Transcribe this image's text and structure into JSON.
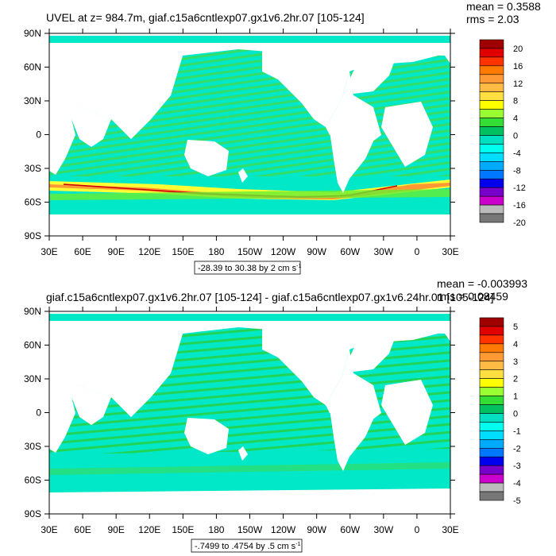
{
  "chart_data": [
    {
      "type": "heatmap",
      "title": "UVEL at z= 984.7m, giaf.c15a6cntlexp07.gx1v6.2hr.07 [105-124]",
      "stats": {
        "mean": "mean = 0.3588",
        "rms": "rms = 2.03"
      },
      "contour_info": "-28.39 to 30.38 by 2 cm s",
      "contour_info_sup": "-1",
      "x_ticks": [
        "30E",
        "60E",
        "90E",
        "120E",
        "150E",
        "180",
        "150W",
        "120W",
        "90W",
        "60W",
        "30W",
        "0",
        "30E"
      ],
      "y_ticks": [
        "90N",
        "60N",
        "30N",
        "0",
        "30S",
        "60S",
        "90S"
      ],
      "ylim": [
        -90,
        90
      ],
      "colorbar_labels": [
        "20",
        "16",
        "12",
        "8",
        "4",
        "0",
        "-4",
        "-8",
        "-12",
        "-16",
        "-20"
      ],
      "colorbar_colors": [
        "#a00000",
        "#e00000",
        "#ff3300",
        "#ff7a00",
        "#ff9933",
        "#ffbb44",
        "#ffe040",
        "#ffff00",
        "#99ff33",
        "#33dd33",
        "#00c060",
        "#00e0c0",
        "#00ffee",
        "#00ddff",
        "#00aaff",
        "#0077ff",
        "#0000ee",
        "#7700cc",
        "#cc00cc",
        "#bbbbbb",
        "#777777"
      ]
    },
    {
      "type": "heatmap",
      "title": "giaf.c15a6cntlexp07.gx1v6.2hr.07 [105-124] - giaf.c15a6cntlexp07.gx1v6.24hr.01 [105-124]",
      "stats": {
        "mean": "mean = -0.003993",
        "rms": "rms = 0.08459"
      },
      "contour_info": "-.7499 to .4754 by .5 cm s",
      "contour_info_sup": "-1",
      "x_ticks": [
        "30E",
        "60E",
        "90E",
        "120E",
        "150E",
        "180",
        "150W",
        "120W",
        "90W",
        "60W",
        "30W",
        "0",
        "30E"
      ],
      "y_ticks": [
        "90N",
        "60N",
        "30N",
        "0",
        "30S",
        "60S",
        "90S"
      ],
      "ylim": [
        -90,
        90
      ],
      "colorbar_labels": [
        "5",
        "4",
        "3",
        "2",
        "1",
        "0",
        "-1",
        "-2",
        "-3",
        "-4",
        "-5"
      ],
      "colorbar_colors": [
        "#a00000",
        "#e00000",
        "#ff3300",
        "#ff7a00",
        "#ff9933",
        "#ffbb44",
        "#ffe040",
        "#ffff00",
        "#99ff33",
        "#33dd33",
        "#00c060",
        "#00e0c0",
        "#00ffee",
        "#00ddff",
        "#00aaff",
        "#0077ff",
        "#0000ee",
        "#7700cc",
        "#cc00cc",
        "#bbbbbb",
        "#777777"
      ]
    }
  ]
}
